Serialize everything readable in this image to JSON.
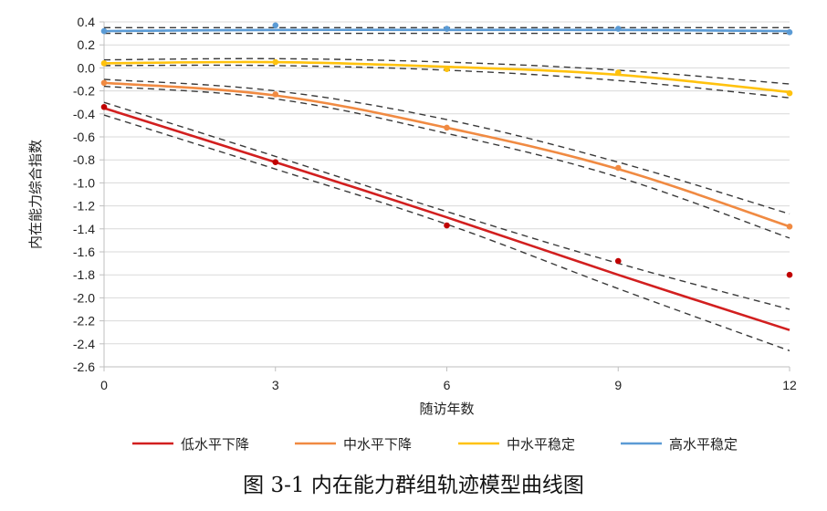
{
  "chart_data": {
    "type": "line",
    "title": "",
    "xlabel": "随访年数",
    "ylabel": "内在能力综合指数",
    "xlim": [
      0,
      12
    ],
    "ylim": [
      -2.6,
      0.4
    ],
    "x_ticks": [
      "0",
      "3",
      "6",
      "9",
      "12"
    ],
    "y_ticks": [
      "0.4",
      "0.2",
      "0.0",
      "-0.2",
      "-0.4",
      "-0.6",
      "-0.8",
      "-1.0",
      "-1.2",
      "-1.4",
      "-1.6",
      "-1.8",
      "-2.0",
      "-2.2",
      "-2.4",
      "-2.6"
    ],
    "grid": "horizontal",
    "legend_position": "bottom",
    "x": [
      0,
      3,
      6,
      9,
      12
    ],
    "series": [
      {
        "name": "低水平下降",
        "color": "#d21f1f",
        "fitted": [
          -0.35,
          -0.82,
          -1.3,
          -1.8,
          -2.28
        ],
        "ci_upper": [
          -0.3,
          -0.77,
          -1.25,
          -1.7,
          -2.1
        ],
        "ci_lower": [
          -0.41,
          -0.88,
          -1.36,
          -1.92,
          -2.46
        ],
        "observed": [
          -0.34,
          -0.82,
          -1.37,
          -1.68,
          -1.8
        ]
      },
      {
        "name": "中水平下降",
        "color": "#f08a42",
        "fitted": [
          -0.13,
          -0.24,
          -0.52,
          -0.88,
          -1.38
        ],
        "ci_upper": [
          -0.1,
          -0.2,
          -0.45,
          -0.82,
          -1.27
        ],
        "ci_lower": [
          -0.16,
          -0.27,
          -0.57,
          -0.95,
          -1.48
        ],
        "observed": [
          -0.13,
          -0.23,
          -0.52,
          -0.87,
          -1.38
        ]
      },
      {
        "name": "中水平稳定",
        "color": "#ffc20e",
        "fitted": [
          0.04,
          0.05,
          0.01,
          -0.06,
          -0.21
        ],
        "ci_upper": [
          0.07,
          0.08,
          0.05,
          -0.02,
          -0.14
        ],
        "ci_lower": [
          0.02,
          0.02,
          -0.02,
          -0.11,
          -0.26
        ],
        "observed": [
          0.04,
          0.05,
          -0.01,
          -0.04,
          -0.22
        ]
      },
      {
        "name": "高水平稳定",
        "color": "#5b9bd5",
        "fitted": [
          0.32,
          0.33,
          0.33,
          0.33,
          0.32
        ],
        "ci_upper": [
          0.35,
          0.35,
          0.35,
          0.35,
          0.35
        ],
        "ci_lower": [
          0.3,
          0.3,
          0.3,
          0.3,
          0.3
        ],
        "observed": [
          0.32,
          0.37,
          0.34,
          0.34,
          0.31
        ]
      }
    ]
  },
  "caption": "图 3-1 内在能力群组轨迹模型曲线图"
}
